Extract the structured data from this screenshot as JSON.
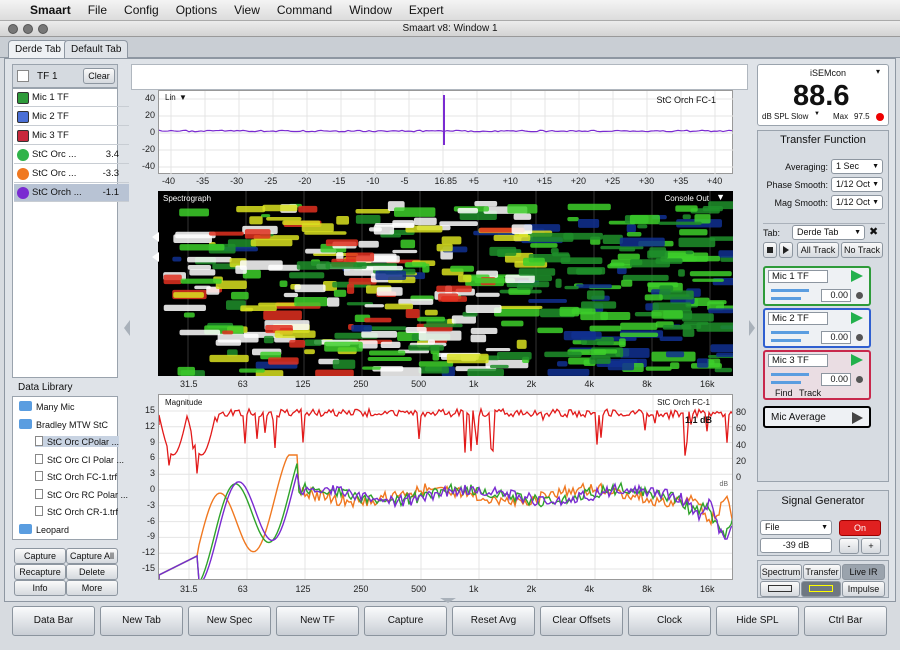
{
  "menubar": {
    "app": "Smaart",
    "items": [
      "File",
      "Config",
      "Options",
      "View",
      "Command",
      "Window",
      "Expert"
    ]
  },
  "window": {
    "title": "Smaart v8: Window 1"
  },
  "tabs": [
    "Derde Tab",
    "Default Tab"
  ],
  "left": {
    "header": "TF 1",
    "clear_label": "Clear",
    "measurements": [
      {
        "label": "Mic 1 TF",
        "value": "",
        "color": "#2e9b3a"
      },
      {
        "label": "Mic 2 TF",
        "value": "",
        "color": "#4a6fd6"
      },
      {
        "label": "Mic 3 TF",
        "value": "",
        "color": "#c8283c"
      },
      {
        "label": "StC Orc ...",
        "value": "3.4",
        "color": "#2fb34a"
      },
      {
        "label": "StC Orc ...",
        "value": "-3.3",
        "color": "#f07820"
      },
      {
        "label": "StC Orch ...",
        "value": "-1.1",
        "color": "#7a2bd1"
      }
    ],
    "library_title": "Data Library",
    "library": [
      {
        "label": "Many Mic",
        "type": "folder",
        "indent": 0
      },
      {
        "label": "Bradley MTW StC",
        "type": "folder",
        "indent": 0
      },
      {
        "label": "StC Orc CPolar ...",
        "type": "file",
        "indent": 1
      },
      {
        "label": "StC Orc CI Polar ...",
        "type": "file",
        "indent": 1
      },
      {
        "label": "StC Orch FC-1.trf",
        "type": "file",
        "indent": 1
      },
      {
        "label": "StC Orc RC Polar ...",
        "type": "file",
        "indent": 1
      },
      {
        "label": "StC Orch CR-1.trf",
        "type": "file",
        "indent": 1
      },
      {
        "label": "Leopard",
        "type": "folder",
        "indent": 0
      }
    ],
    "buttons": [
      "Capture",
      "Capture All",
      "Recapture",
      "Delete",
      "Info",
      "More"
    ]
  },
  "impulse": {
    "scale_label": "Lin",
    "trace_label": "StC Orch FC-1",
    "y_ticks": [
      "40",
      "20",
      "0",
      "-20",
      "-40"
    ],
    "x_ticks": [
      "-40",
      "-35",
      "-30",
      "-25",
      "-20",
      "-15",
      "-10",
      "-5",
      "16.85",
      "+5",
      "+10",
      "+15",
      "+20",
      "+25",
      "+30",
      "+35",
      "+40"
    ]
  },
  "spectrograph": {
    "label": "Spectrograph",
    "source": "Console Out",
    "x_ticks": [
      "31.5",
      "63",
      "125",
      "250",
      "500",
      "1k",
      "2k",
      "4k",
      "8k",
      "16k"
    ]
  },
  "magnitude": {
    "label": "Magnitude",
    "trace": "StC Orch FC-1",
    "delay": "1.1 dB",
    "left_ticks": [
      "15",
      "12",
      "9",
      "6",
      "3",
      "0",
      "-3",
      "-6",
      "-9",
      "-12",
      "-15"
    ],
    "right_ticks": [
      "80",
      "60",
      "40",
      "20",
      "0"
    ],
    "x_ticks": [
      "31.5",
      "63",
      "125",
      "250",
      "500",
      "1k",
      "2k",
      "4k",
      "8k",
      "16k"
    ],
    "axis_note": "dB"
  },
  "spl": {
    "device": "iSEMcon",
    "value": "88.6",
    "unit": "dB SPL Slow",
    "max_label": "Max",
    "max_value": "97.5"
  },
  "tf_panel": {
    "title": "Transfer Function",
    "averaging_label": "Averaging:",
    "averaging": "1 Sec",
    "phase_label": "Phase Smooth:",
    "phase": "1/12 Oct",
    "mag_label": "Mag Smooth:",
    "mag": "1/12 Oct",
    "tab_label": "Tab:",
    "tab": "Derde Tab",
    "all_track": "All Track",
    "no_track": "No Track",
    "engines": [
      {
        "name": "Mic 1 TF",
        "gain": "0.00",
        "border": "#2e9b3a"
      },
      {
        "name": "Mic 2 TF",
        "gain": "0.00",
        "border": "#2f5fd0"
      },
      {
        "name": "Mic 3 TF",
        "gain": "0.00",
        "border": "#c8284c"
      }
    ],
    "find_label": "Find",
    "track_label": "Track",
    "average_label": "Mic Average"
  },
  "siggen": {
    "title": "Signal Generator",
    "source": "File",
    "on": "On",
    "level": "-39 dB",
    "minus": "-",
    "plus": "+"
  },
  "modes": {
    "spectrum": "Spectrum",
    "transfer": "Transfer",
    "live_ir": "Live IR",
    "impulse": "Impulse"
  },
  "bottom": [
    "Data Bar",
    "New Tab",
    "New Spec",
    "New TF",
    "Capture",
    "Reset Avg",
    "Clear Offsets",
    "Clock",
    "Hide SPL",
    "Ctrl Bar"
  ]
}
